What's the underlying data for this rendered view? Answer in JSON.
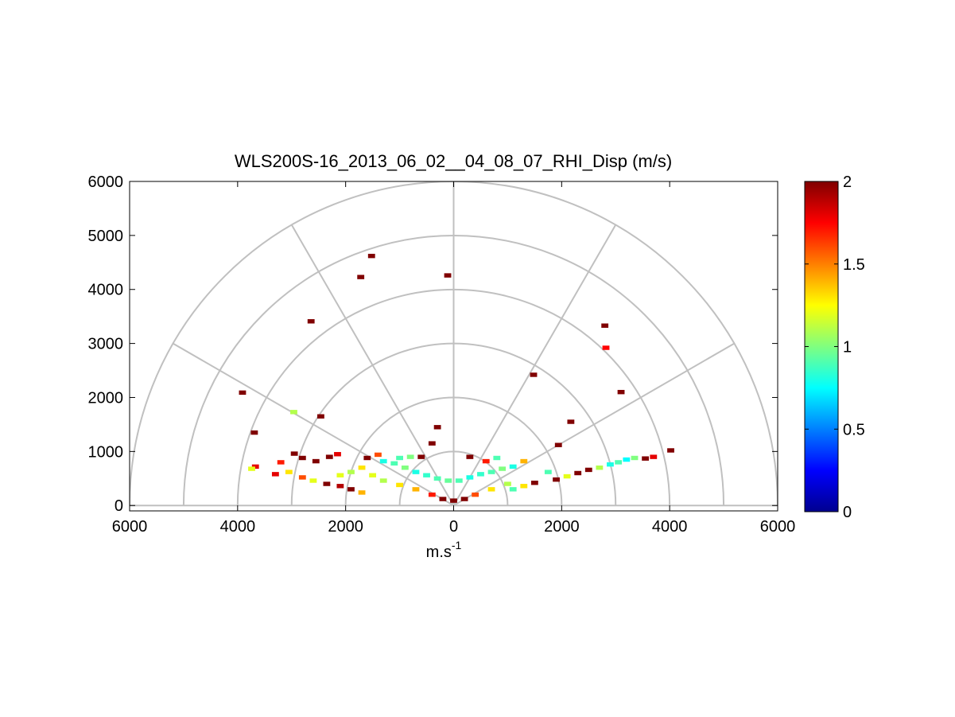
{
  "chart_data": {
    "type": "heatmap",
    "title": "WLS200S-16_2013_06_02__04_08_07_RHI_Disp (m/s)",
    "xlabel": "m.s",
    "xlabel_superscript": "-1",
    "ylabel": "",
    "xlim": [
      -6000,
      6000
    ],
    "ylim": [
      -100,
      6000
    ],
    "x_tick_labels": [
      "6000",
      "4000",
      "2000",
      "0",
      "2000",
      "4000",
      "6000"
    ],
    "y_tick_labels": [
      "0",
      "1000",
      "2000",
      "3000",
      "4000",
      "5000",
      "6000"
    ],
    "polar_grid": {
      "range_rings": [
        1000,
        2000,
        3000,
        4000,
        5000,
        6000
      ],
      "elevation_spokes_deg": [
        0,
        30,
        60,
        90,
        120,
        150,
        180
      ]
    },
    "colorbar": {
      "colormap": "jet",
      "range": [
        0,
        2
      ],
      "tick_labels": [
        "0",
        "0.5",
        "1",
        "1.5",
        "2"
      ]
    },
    "grid": true,
    "cells": [
      {
        "x": -3910,
        "y": 2090,
        "value": 2.0
      },
      {
        "x": -3690,
        "y": 1350,
        "value": 2.0
      },
      {
        "x": -3670,
        "y": 720,
        "value": 1.8
      },
      {
        "x": -3740,
        "y": 680,
        "value": 1.2
      },
      {
        "x": -2640,
        "y": 3410,
        "value": 2.0
      },
      {
        "x": -1720,
        "y": 4230,
        "value": 2.0
      },
      {
        "x": -1520,
        "y": 4620,
        "value": 2.0
      },
      {
        "x": -110,
        "y": 4260,
        "value": 2.0
      },
      {
        "x": -2960,
        "y": 1730,
        "value": 1.1
      },
      {
        "x": -2460,
        "y": 1650,
        "value": 2.0
      },
      {
        "x": 2800,
        "y": 3330,
        "value": 2.0
      },
      {
        "x": 2820,
        "y": 2920,
        "value": 1.75
      },
      {
        "x": 1480,
        "y": 2420,
        "value": 2.0
      },
      {
        "x": 3100,
        "y": 2100,
        "value": 2.0
      },
      {
        "x": 2170,
        "y": 1550,
        "value": 2.0
      },
      {
        "x": 1940,
        "y": 1120,
        "value": 2.0
      },
      {
        "x": 4020,
        "y": 1020,
        "value": 2.0
      },
      {
        "x": -2950,
        "y": 960,
        "value": 2.0
      },
      {
        "x": -2800,
        "y": 880,
        "value": 2.0
      },
      {
        "x": -2550,
        "y": 820,
        "value": 2.0
      },
      {
        "x": -2300,
        "y": 900,
        "value": 2.0
      },
      {
        "x": -2150,
        "y": 950,
        "value": 1.8
      },
      {
        "x": -3200,
        "y": 800,
        "value": 1.7
      },
      {
        "x": -3300,
        "y": 580,
        "value": 1.8
      },
      {
        "x": -3050,
        "y": 620,
        "value": 1.3
      },
      {
        "x": -2800,
        "y": 520,
        "value": 1.6
      },
      {
        "x": -2600,
        "y": 460,
        "value": 1.2
      },
      {
        "x": -2350,
        "y": 400,
        "value": 2.0
      },
      {
        "x": -2100,
        "y": 360,
        "value": 1.9
      },
      {
        "x": -1900,
        "y": 300,
        "value": 2.0
      },
      {
        "x": -1700,
        "y": 240,
        "value": 1.4
      },
      {
        "x": 3550,
        "y": 870,
        "value": 2.0
      },
      {
        "x": 3700,
        "y": 900,
        "value": 1.8
      },
      {
        "x": 3350,
        "y": 880,
        "value": 1.0
      },
      {
        "x": 3200,
        "y": 850,
        "value": 0.75
      },
      {
        "x": 3050,
        "y": 800,
        "value": 0.9
      },
      {
        "x": 2900,
        "y": 760,
        "value": 0.8
      },
      {
        "x": 2700,
        "y": 700,
        "value": 1.1
      },
      {
        "x": 2500,
        "y": 660,
        "value": 2.0
      },
      {
        "x": 2300,
        "y": 600,
        "value": 2.0
      },
      {
        "x": 2100,
        "y": 540,
        "value": 1.2
      },
      {
        "x": 1900,
        "y": 480,
        "value": 2.0
      },
      {
        "x": 1750,
        "y": 620,
        "value": 0.9
      },
      {
        "x": 1500,
        "y": 420,
        "value": 2.0
      },
      {
        "x": 1300,
        "y": 360,
        "value": 1.3
      },
      {
        "x": 1100,
        "y": 300,
        "value": 0.9
      },
      {
        "x": -1300,
        "y": 820,
        "value": 0.8
      },
      {
        "x": -1100,
        "y": 780,
        "value": 0.9
      },
      {
        "x": -900,
        "y": 700,
        "value": 1.0
      },
      {
        "x": -700,
        "y": 620,
        "value": 0.8
      },
      {
        "x": -500,
        "y": 560,
        "value": 0.85
      },
      {
        "x": -300,
        "y": 500,
        "value": 0.9
      },
      {
        "x": -100,
        "y": 460,
        "value": 0.95
      },
      {
        "x": 100,
        "y": 460,
        "value": 0.9
      },
      {
        "x": 300,
        "y": 520,
        "value": 0.8
      },
      {
        "x": 500,
        "y": 580,
        "value": 0.85
      },
      {
        "x": 700,
        "y": 620,
        "value": 0.9
      },
      {
        "x": 900,
        "y": 680,
        "value": 1.0
      },
      {
        "x": 1100,
        "y": 720,
        "value": 0.8
      },
      {
        "x": -1500,
        "y": 560,
        "value": 1.2
      },
      {
        "x": -1300,
        "y": 460,
        "value": 1.1
      },
      {
        "x": -1000,
        "y": 380,
        "value": 1.3
      },
      {
        "x": -700,
        "y": 300,
        "value": 1.4
      },
      {
        "x": -400,
        "y": 200,
        "value": 1.7
      },
      {
        "x": -200,
        "y": 120,
        "value": 2.0
      },
      {
        "x": 0,
        "y": 90,
        "value": 2.0
      },
      {
        "x": 200,
        "y": 120,
        "value": 2.0
      },
      {
        "x": 400,
        "y": 200,
        "value": 1.6
      },
      {
        "x": 700,
        "y": 300,
        "value": 1.3
      },
      {
        "x": 1000,
        "y": 400,
        "value": 1.1
      },
      {
        "x": -1700,
        "y": 700,
        "value": 1.3
      },
      {
        "x": -1900,
        "y": 620,
        "value": 1.1
      },
      {
        "x": -2100,
        "y": 560,
        "value": 1.2
      },
      {
        "x": -1600,
        "y": 880,
        "value": 2.0
      },
      {
        "x": -1400,
        "y": 940,
        "value": 1.6
      },
      {
        "x": -600,
        "y": 900,
        "value": 2.0
      },
      {
        "x": -400,
        "y": 1150,
        "value": 2.0
      },
      {
        "x": -300,
        "y": 1450,
        "value": 2.0
      },
      {
        "x": 300,
        "y": 900,
        "value": 2.0
      },
      {
        "x": 600,
        "y": 820,
        "value": 1.7
      },
      {
        "x": 1300,
        "y": 820,
        "value": 1.4
      },
      {
        "x": 800,
        "y": 880,
        "value": 0.9
      },
      {
        "x": -800,
        "y": 900,
        "value": 1.0
      },
      {
        "x": -1000,
        "y": 880,
        "value": 0.9
      }
    ]
  }
}
